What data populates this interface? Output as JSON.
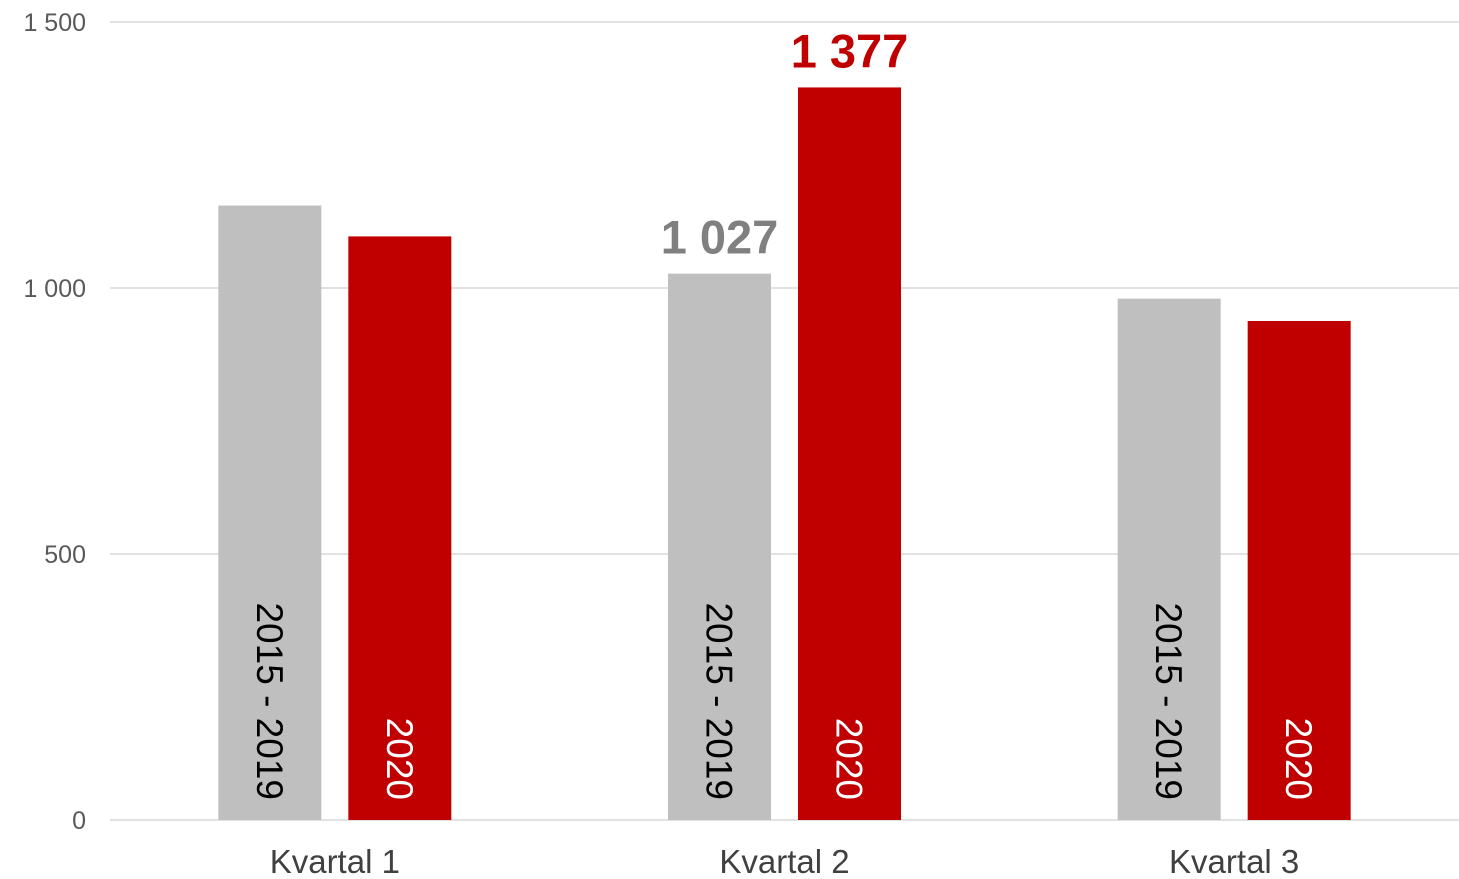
{
  "chart_data": {
    "type": "bar",
    "categories": [
      "Kvartal 1",
      "Kvartal 2",
      "Kvartal 3"
    ],
    "series": [
      {
        "label": "2015 - 2019",
        "color": "#bfbfbf",
        "label_color": "#000000",
        "values": [
          1155,
          1027,
          980
        ]
      },
      {
        "label": "2020",
        "color": "#c00000",
        "label_color": "#ffffff",
        "values": [
          1097,
          1377,
          938
        ]
      }
    ],
    "data_labels": [
      {
        "series": 0,
        "category": 1,
        "text": "1 027",
        "color": "#808080"
      },
      {
        "series": 1,
        "category": 1,
        "text": "1 377",
        "color": "#c00000"
      }
    ],
    "yticks": [
      {
        "value": 0,
        "label": "0"
      },
      {
        "value": 500,
        "label": "500"
      },
      {
        "value": 1000,
        "label": "1 000"
      },
      {
        "value": 1500,
        "label": "1 500"
      }
    ],
    "ylim": [
      0,
      1500
    ],
    "grid": true,
    "legend": "none",
    "title": "",
    "xlabel": "",
    "ylabel": ""
  }
}
